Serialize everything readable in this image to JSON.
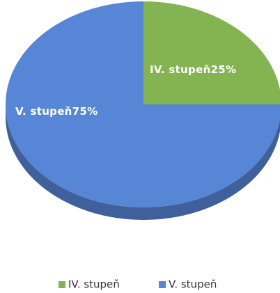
{
  "chart_data": {
    "type": "pie",
    "categories": [
      "IV. stupeň",
      "V. stupeň"
    ],
    "values": [
      25,
      75
    ],
    "value_labels": [
      "25%",
      "75%"
    ],
    "colors": [
      "#83b451",
      "#5786d6"
    ],
    "legend": "bottom"
  }
}
